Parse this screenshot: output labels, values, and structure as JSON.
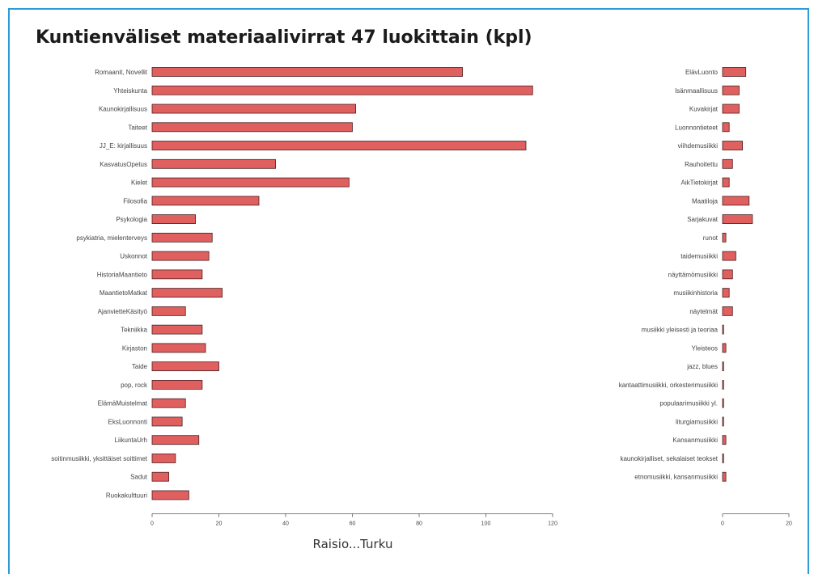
{
  "chart_data": [
    {
      "type": "bar",
      "orientation": "horizontal",
      "title": "Kuntienväliset materiaalivirrat 47 luokittain (kpl)",
      "xlabel": "Raisio...Turku",
      "ylabel": "",
      "xlim": [
        0,
        120
      ],
      "xticks": [
        0,
        20,
        40,
        60,
        80,
        100,
        120
      ],
      "bar_color": "#e06060",
      "categories": [
        "Romaanit, Novellit",
        "Yhteiskunta",
        "Kaunokirjallisuus",
        "Taiteet",
        "JJ_E: kirjallisuus",
        "KasvatusOpetus",
        "Kielet",
        "Filosofia",
        "Psykologia",
        "psykiatria, mielenterveys",
        "Uskonnot",
        "HistoriaMaantieto",
        "MaantietoMatkat",
        "AjanvietteKäsityö",
        "Tekniikka",
        "Kirjaston",
        "Taide",
        "pop, rock",
        "ElämäMuistelmat",
        "EksLuonnonti",
        "LiikuntaUrh",
        "soitinmusiikki, yksittäiset soittimet",
        "Sadut",
        "Ruokakulttuuri"
      ],
      "values": [
        93,
        114,
        61,
        60,
        112,
        37,
        59,
        32,
        13,
        18,
        17,
        15,
        21,
        10,
        15,
        16,
        20,
        15,
        10,
        9,
        14,
        7,
        5,
        11
      ]
    },
    {
      "type": "bar",
      "orientation": "horizontal",
      "xlabel": "",
      "ylabel": "",
      "xlim": [
        0,
        20
      ],
      "xticks": [
        0,
        20
      ],
      "bar_color": "#e06060",
      "categories": [
        "ElävLuonto",
        "Isänmaallisuus",
        "Kuvakirjat",
        "Luonnontieteet",
        "viihdemusiikki",
        "Rauhoitettu",
        "AikTietokirjat",
        "Maatiloja",
        "Sarjakuvat",
        "runot",
        "taidemusiikki",
        "näyttämömusiikki",
        "musiikinhistoria",
        "näytelmät",
        "musiikki yleisesti ja teoriaa",
        "Yleisteos",
        "jazz, blues",
        "kantaattimusiikki, orkesterimusiikki",
        "populaarimusiikki yl.",
        "liturgiamusiikki",
        "Kansanmusiikki",
        "kaunokirjalliset, sekalaiset teokset",
        "etnomusiikki, kansanmusiikki"
      ],
      "values": [
        7,
        5,
        5,
        2,
        6,
        3,
        2,
        8,
        9,
        1,
        4,
        3,
        2,
        3,
        0.3,
        1,
        0.3,
        0.3,
        0.3,
        0.3,
        1,
        0.3,
        1
      ]
    }
  ]
}
